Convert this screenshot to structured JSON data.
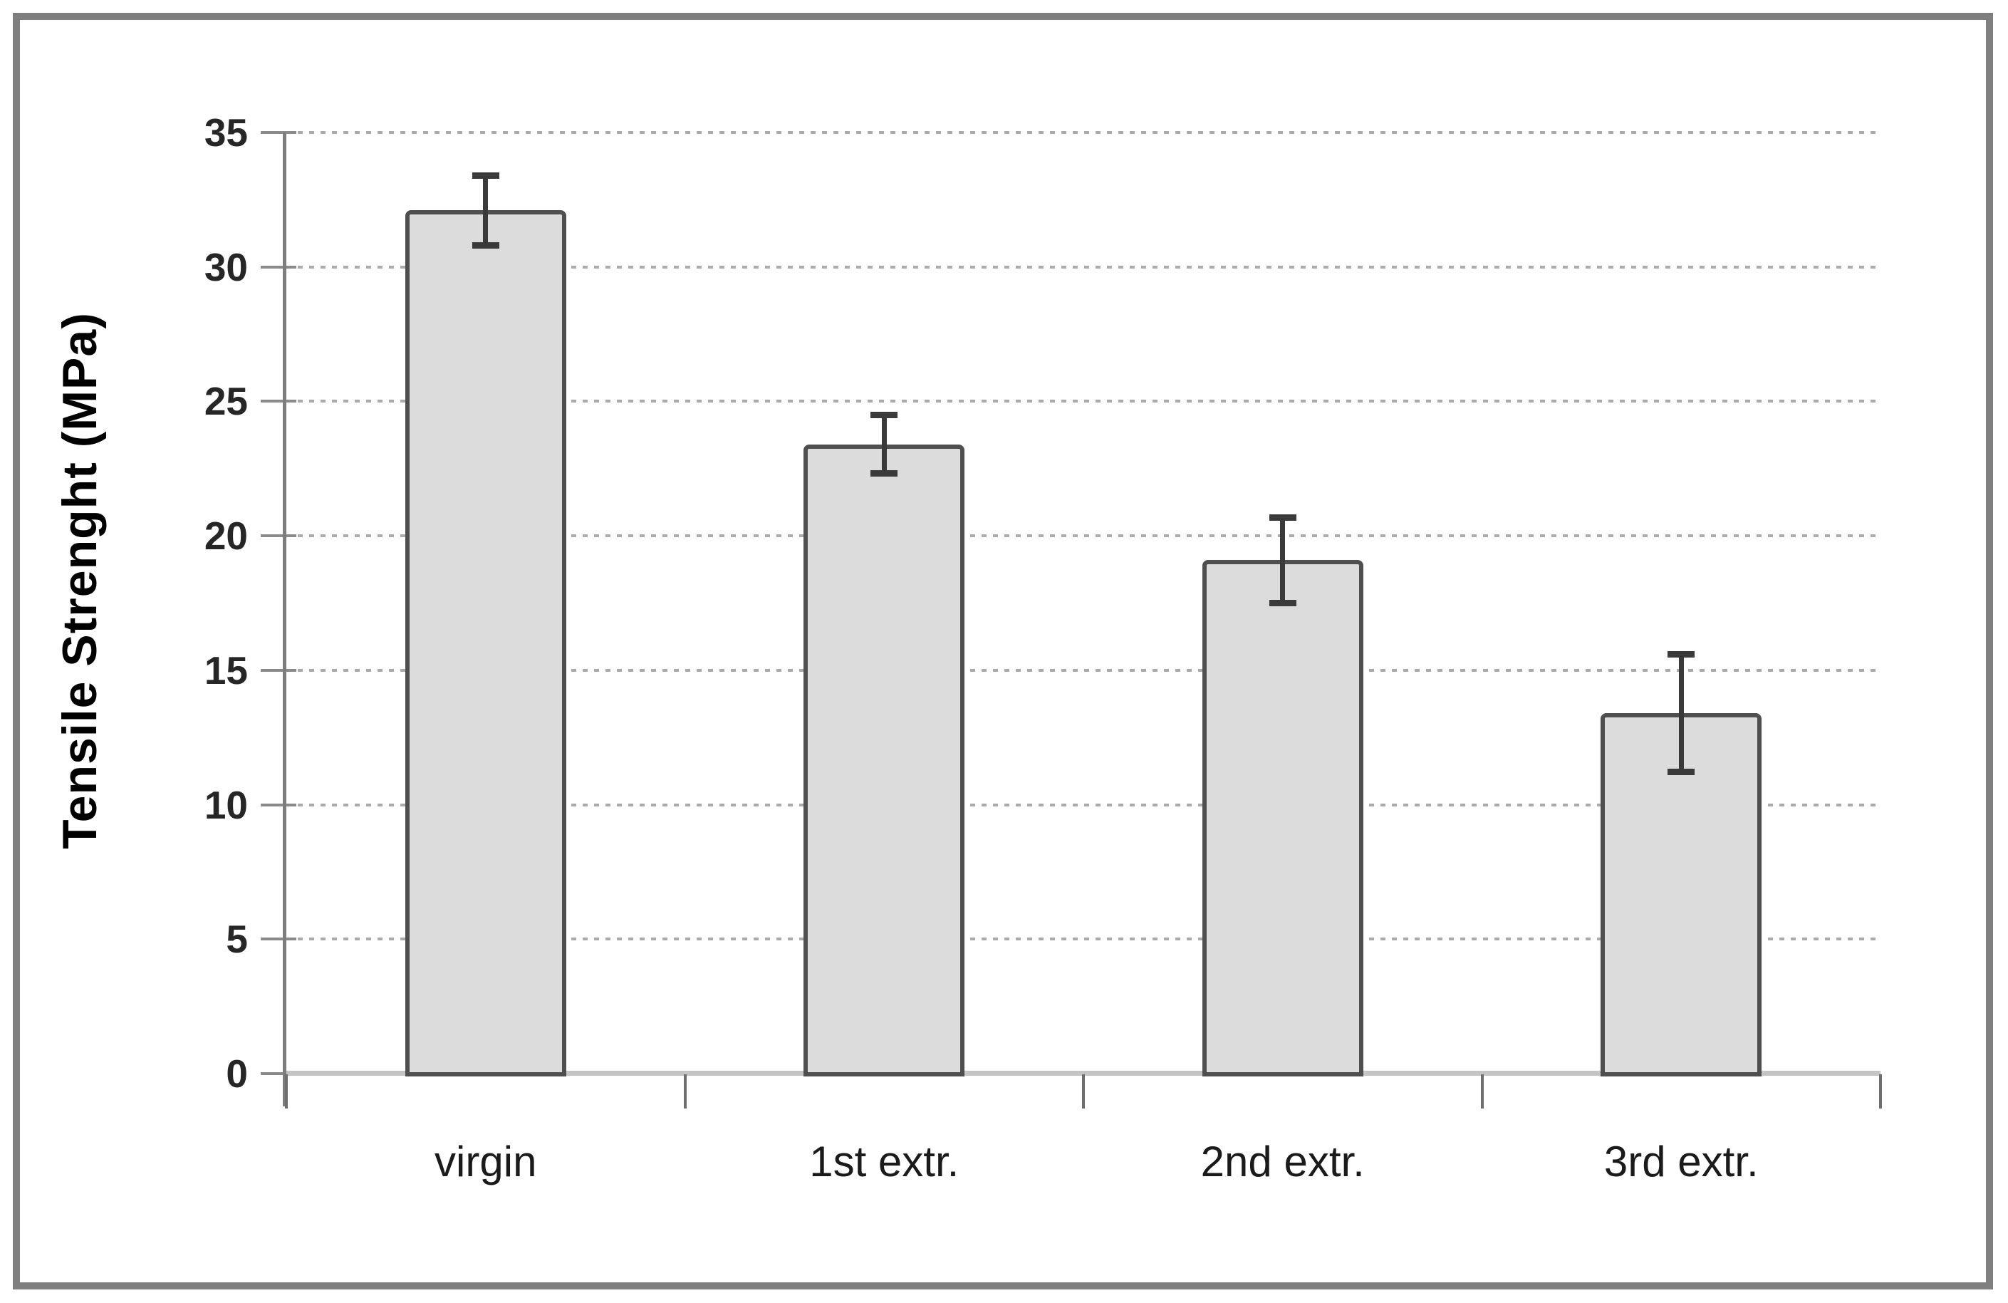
{
  "figure": {
    "background": "#ffffff",
    "frame_color": "#7f7f7f"
  },
  "chart_data": {
    "type": "bar",
    "title": "",
    "xlabel": "",
    "ylabel": "Tensile Strenght (MPa)",
    "categories": [
      "virgin",
      "1st extr.",
      "2nd extr.",
      "3rd extr."
    ],
    "values": [
      32.1,
      23.4,
      19.1,
      13.4
    ],
    "error_bars": {
      "type": "symmetric",
      "values": [
        1.3,
        1.1,
        1.6,
        2.2
      ]
    },
    "ylim": [
      0,
      35
    ],
    "ytick_step": 5,
    "ytick_labels": [
      "0",
      "5",
      "10",
      "15",
      "20",
      "25",
      "30",
      "35"
    ],
    "grid": "horizontal-dotted",
    "legend": "none",
    "colors": {
      "bar_fill": "#dcdcdc",
      "bar_border": "#4f4f4f",
      "error_bar": "#3a3a3a",
      "gridline": "#ababab",
      "y_axis_line": "#7d7d7d",
      "x_axis_line": "#c4c4c4",
      "y_tick_mark": "#8a8a8a",
      "x_tick_mark": "#6e6e6e",
      "tick_label": "#262626",
      "axis_title": "#000000"
    }
  }
}
